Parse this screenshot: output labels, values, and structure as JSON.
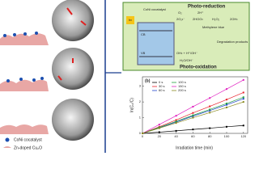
{
  "left": {
    "legend": [
      "CoNi cocatalyst",
      "Zn-doped Cu₂O"
    ]
  },
  "diagram": {
    "cocatalyst": "CoNi cocatalyst",
    "light": "hν",
    "reduction": "Photo-reduction",
    "o2": "O₂",
    "superoxide": "2O₂•⁻",
    "protons": "2H⁺",
    "hoo": "2HOO•",
    "h2o2": "H₂O₂",
    "oh": "2OH•",
    "cb": "CB",
    "vb": "VB",
    "dye": "Methylene blue",
    "products": "Degradation products",
    "ohline": "OH• + H⁺/OH⁻",
    "water": "H₂O/OH⁻",
    "oxidation": "Photo-oxidation"
  },
  "chart_data": {
    "type": "line",
    "label": "(b)",
    "x_label": "Irradiation time (min)",
    "y_label": "ln(C₀/C)",
    "x": [
      0,
      20,
      40,
      60,
      80,
      100,
      120
    ],
    "series": [
      {
        "name": "0 s",
        "color": "#000000",
        "values": [
          0,
          0.08,
          0.16,
          0.25,
          0.33,
          0.42,
          0.5
        ]
      },
      {
        "name": "30 s",
        "color": "#e8202a",
        "values": [
          0,
          0.42,
          0.85,
          1.3,
          1.72,
          2.15,
          2.6
        ]
      },
      {
        "name": "60 s",
        "color": "#2244cc",
        "values": [
          0,
          0.36,
          0.72,
          1.1,
          1.45,
          1.82,
          2.2
        ]
      },
      {
        "name": "100 s",
        "color": "#22a040",
        "values": [
          0,
          0.38,
          0.76,
          1.15,
          1.52,
          1.9,
          2.3
        ]
      },
      {
        "name": "150 s",
        "color": "#e020c0",
        "values": [
          0,
          0.56,
          1.12,
          1.7,
          2.25,
          2.82,
          3.4
        ]
      },
      {
        "name": "200 s",
        "color": "#8a8a20",
        "values": [
          0,
          0.33,
          0.66,
          1.0,
          1.32,
          1.65,
          2.0
        ]
      }
    ],
    "xlim": [
      0,
      125
    ],
    "xticks": [
      0,
      20,
      40,
      60,
      80,
      100,
      120
    ],
    "ylim": [
      0,
      3.6
    ],
    "yticks": [
      0,
      1,
      2,
      3
    ]
  }
}
